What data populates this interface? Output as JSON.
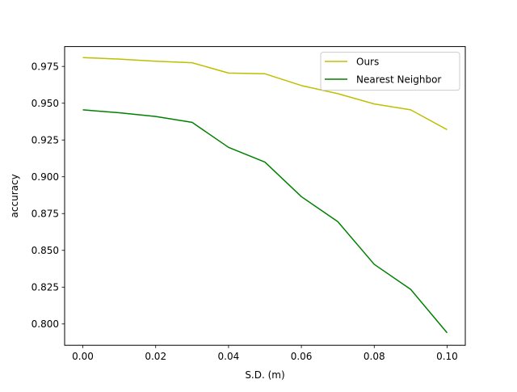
{
  "chart_data": {
    "type": "line",
    "title": "",
    "xlabel": "S.D. (m)",
    "ylabel": "accuracy",
    "xlim": [
      -0.005,
      0.105
    ],
    "ylim": [
      0.7855,
      0.9885
    ],
    "grid": false,
    "legend_position": "top-right",
    "x": [
      0.0,
      0.01,
      0.02,
      0.03,
      0.04,
      0.05,
      0.06,
      0.07,
      0.08,
      0.09,
      0.1
    ],
    "xticks": [
      "0.00",
      "0.02",
      "0.04",
      "0.06",
      "0.08",
      "0.10"
    ],
    "yticks": [
      "0.800",
      "0.825",
      "0.850",
      "0.875",
      "0.900",
      "0.925",
      "0.950",
      "0.975"
    ],
    "series": [
      {
        "name": "Ours",
        "color": "#bfbf00",
        "values": [
          0.981,
          0.98,
          0.9785,
          0.9775,
          0.9705,
          0.97,
          0.962,
          0.9565,
          0.9495,
          0.9455,
          0.932
        ]
      },
      {
        "name": "Nearest Neighbor",
        "color": "#008000",
        "values": [
          0.9455,
          0.9435,
          0.941,
          0.937,
          0.92,
          0.91,
          0.8865,
          0.8695,
          0.8405,
          0.8235,
          0.794
        ]
      }
    ]
  }
}
